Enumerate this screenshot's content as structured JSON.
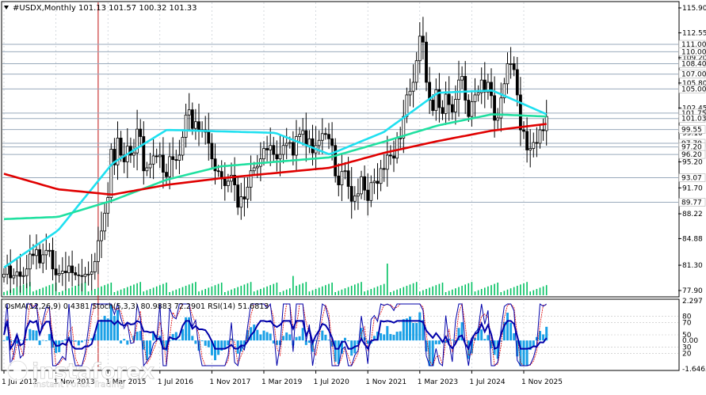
{
  "header": {
    "symbol_line": "#USDX,Monthly  101.13 101.57 100.32 101.33",
    "arrow_icon": "triangle-down-icon"
  },
  "indicator_header": {
    "text": "OsMA(12,26,9) 0.4381  Stoch(5,3,3) 80.9883 72.2901  RSI(14) 51.6813"
  },
  "watermark": {
    "brand": "instaforex",
    "tagline": "Instant Forex Trading",
    "icon": "instaforex-logo-icon"
  },
  "colors": {
    "candles": "#000000",
    "fast_ma": "#1fe0f0",
    "mid_ma": "#20e0a0",
    "slow_ma": "#e00000",
    "volume": "#00c060",
    "osma": "#1aa0e6",
    "stoch_main": "#0000aa",
    "stoch_signal": "#e00000",
    "rsi": "#000000",
    "level_lines": "#99aabb",
    "current_marker": "#c01010"
  },
  "chart_data": [
    {
      "type": "candlestick",
      "title": "#USDX,Monthly",
      "ohlc_last": {
        "open": 101.13,
        "high": 101.57,
        "low": 100.32,
        "close": 101.33
      },
      "y_ticks": [
        "115.90",
        "112.55",
        "109.20",
        "105.80",
        "102.45",
        "99.10",
        "95.20",
        "91.70",
        "88.22",
        "84.88",
        "81.30",
        "77.90"
      ],
      "ylim": [
        77.9,
        115.9
      ],
      "level_tags": [
        "111.00",
        "110.00",
        "108.40",
        "107.00",
        "105.00",
        "101.75",
        "101.03",
        "99.55",
        "97.70",
        "97.20",
        "96.20",
        "93.07",
        "89.77"
      ],
      "current_price": 101.33,
      "x_ticks": [
        "1 Jul 2012",
        "1 Nov 2013",
        "1 Mar 2015",
        "1 Jul 2016",
        "1 Nov 2017",
        "1 Mar 2019",
        "1 Jul 2020",
        "1 Nov 2021",
        "1 Mar 2023",
        "1 Jul 2024",
        "1 Nov 2025"
      ],
      "x_tick_months": [
        0,
        16,
        32,
        48,
        64,
        80,
        96,
        112,
        128,
        144,
        160
      ],
      "series_close_monthly": [
        80.1,
        81.2,
        79.6,
        79.9,
        80.4,
        79.8,
        79.9,
        80.8,
        82.8,
        82.6,
        83.4,
        81.6,
        82.7,
        83.3,
        83.3,
        80.8,
        80.0,
        80.2,
        80.5,
        80.3,
        81.2,
        80.3,
        80.0,
        79.9,
        79.8,
        80.1,
        80.1,
        80.4,
        81.8,
        84.6,
        85.9,
        88.3,
        90.4,
        96.9,
        94.8,
        98.4,
        96.1,
        95.2,
        97.3,
        96.1,
        96.4,
        99.6,
        98.6,
        94.0,
        94.4,
        94.9,
        96.0,
        95.9,
        96.1,
        93.8,
        93.2,
        95.9,
        95.5,
        95.4,
        96.1,
        98.5,
        101.5,
        102.2,
        99.7,
        100.6,
        99.5,
        99.5,
        99.2,
        97.7,
        95.6,
        94.0,
        93.9,
        92.9,
        92.0,
        92.6,
        93.4,
        92.1,
        89.1,
        90.5,
        90.2,
        91.8,
        94.0,
        94.4,
        94.6,
        95.6,
        97.0,
        96.8,
        97.4,
        96.2,
        95.6,
        96.2,
        97.4,
        97.7,
        97.8,
        96.1,
        98.6,
        98.9,
        99.4,
        97.4,
        98.3,
        96.4,
        97.4,
        98.1,
        99.0,
        98.9,
        98.3,
        97.4,
        93.3,
        92.1,
        93.9,
        94.0,
        91.9,
        89.9,
        90.6,
        90.9,
        93.2,
        91.4,
        90.0,
        92.4,
        92.6,
        92.3,
        94.3,
        94.2,
        96.1,
        96.0,
        95.7,
        98.4,
        98.4,
        101.3,
        104.2,
        104.7,
        105.9,
        108.8,
        112.1,
        111.3,
        105.9,
        103.5,
        102.1,
        104.9,
        102.5,
        101.7,
        104.3,
        102.9,
        101.9,
        103.6,
        106.2,
        106.7,
        103.5,
        101.3,
        103.3,
        104.2,
        104.5,
        106.2,
        104.6,
        105.9,
        104.1,
        100.8,
        101.1,
        103.8,
        105.7,
        108.4,
        108.4,
        107.6,
        104.2,
        99.5,
        99.3,
        96.8,
        97.0,
        97.8,
        97.7,
        99.5,
        99.4,
        101.3
      ],
      "series": [
        {
          "name": "fast_ma",
          "values_approx": [
            81,
            86,
            95,
            99.5,
            99.3,
            99.1,
            96.2,
            99.2,
            104.5,
            104.8,
            101.6
          ]
        },
        {
          "name": "mid_ma",
          "values_approx": [
            87.5,
            87.8,
            90.0,
            92.8,
            94.6,
            95.2,
            95.8,
            97.9,
            100.1,
            101.6,
            101.3
          ]
        },
        {
          "name": "slow_ma",
          "values_approx": [
            93.6,
            91.5,
            90.8,
            92.1,
            93.0,
            93.7,
            94.4,
            96.4,
            98.0,
            99.4,
            100.3
          ]
        }
      ]
    },
    {
      "type": "bar",
      "title": "OsMA(12,26,9)",
      "value": 0.4381,
      "y_ticks": [
        "2.297",
        "0.00",
        "-1.6465"
      ],
      "ylim": [
        -1.6465,
        2.297
      ]
    },
    {
      "type": "line",
      "title": "Stoch(5,3,3)",
      "main": 80.9883,
      "signal": 72.2901,
      "levels": [
        "80",
        "70",
        "50",
        "30",
        "20"
      ]
    },
    {
      "type": "line",
      "title": "RSI(14)",
      "value": 51.6813
    }
  ]
}
